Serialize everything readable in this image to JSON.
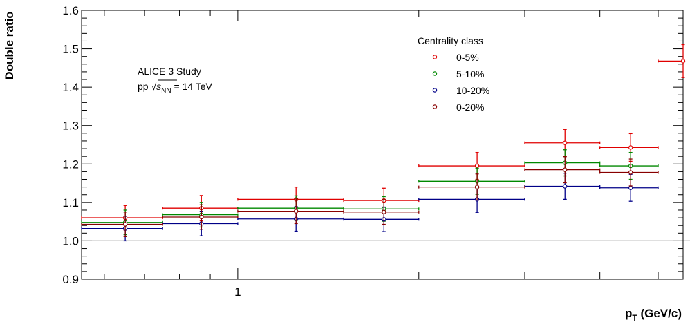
{
  "chart_data": {
    "type": "scatter",
    "ylabel": "Double ratio",
    "xlabel": "p_T (GeV/c)",
    "xlabel_main": "p",
    "xlabel_sub": "T",
    "xlabel_rest": " (GeV/c)",
    "xscale": "log",
    "xlim": [
      0.55,
      5.5
    ],
    "ylim": [
      0.9,
      1.6
    ],
    "yticks": [
      0.9,
      1.0,
      1.1,
      1.2,
      1.3,
      1.4,
      1.5,
      1.6
    ],
    "ytick_labels": [
      "0.9",
      "1.0",
      "1.1",
      "1.2",
      "1.3",
      "1.4",
      "1.5",
      "1.6"
    ],
    "xtick_labels": [
      {
        "value": 1,
        "label": "1"
      }
    ],
    "reference_line": 1.0,
    "grid": false,
    "legend": {
      "title": "Centrality class",
      "placement": "top-right"
    },
    "annotation": {
      "line1": "ALICE 3 Study",
      "line2_prefix": "pp ",
      "line2_s": "s",
      "line2_sub": "NN",
      "line2_rest": " = 14 TeV"
    },
    "series": [
      {
        "name": "0-5%",
        "color": "#e00000",
        "points": [
          {
            "x": 0.65,
            "xlo": 0.55,
            "xhi": 0.75,
            "y": 1.06,
            "ylo": 1.028,
            "yhi": 1.092
          },
          {
            "x": 0.87,
            "xlo": 0.75,
            "xhi": 1.0,
            "y": 1.085,
            "ylo": 1.052,
            "yhi": 1.118
          },
          {
            "x": 1.25,
            "xlo": 1.0,
            "xhi": 1.5,
            "y": 1.108,
            "ylo": 1.076,
            "yhi": 1.14
          },
          {
            "x": 1.75,
            "xlo": 1.5,
            "xhi": 2.0,
            "y": 1.105,
            "ylo": 1.073,
            "yhi": 1.137
          },
          {
            "x": 2.5,
            "xlo": 2.0,
            "xhi": 3.0,
            "y": 1.195,
            "ylo": 1.16,
            "yhi": 1.23
          },
          {
            "x": 3.5,
            "xlo": 3.0,
            "xhi": 4.0,
            "y": 1.255,
            "ylo": 1.22,
            "yhi": 1.29
          },
          {
            "x": 4.5,
            "xlo": 4.0,
            "xhi": 5.0,
            "y": 1.243,
            "ylo": 1.207,
            "yhi": 1.279
          },
          {
            "x": 5.5,
            "xlo": 5.0,
            "xhi": 6.0,
            "y": 1.468,
            "ylo": 1.425,
            "yhi": 1.511
          }
        ]
      },
      {
        "name": "5-10%",
        "color": "#008800",
        "points": [
          {
            "x": 0.65,
            "xlo": 0.55,
            "xhi": 0.75,
            "y": 1.048,
            "ylo": 1.016,
            "yhi": 1.08
          },
          {
            "x": 0.87,
            "xlo": 0.75,
            "xhi": 1.0,
            "y": 1.068,
            "ylo": 1.036,
            "yhi": 1.1
          },
          {
            "x": 1.25,
            "xlo": 1.0,
            "xhi": 1.5,
            "y": 1.085,
            "ylo": 1.053,
            "yhi": 1.117
          },
          {
            "x": 1.75,
            "xlo": 1.5,
            "xhi": 2.0,
            "y": 1.083,
            "ylo": 1.051,
            "yhi": 1.115
          },
          {
            "x": 2.5,
            "xlo": 2.0,
            "xhi": 3.0,
            "y": 1.155,
            "ylo": 1.121,
            "yhi": 1.189
          },
          {
            "x": 3.5,
            "xlo": 3.0,
            "xhi": 4.0,
            "y": 1.203,
            "ylo": 1.169,
            "yhi": 1.237
          },
          {
            "x": 4.5,
            "xlo": 4.0,
            "xhi": 5.0,
            "y": 1.195,
            "ylo": 1.16,
            "yhi": 1.23
          }
        ]
      },
      {
        "name": "10-20%",
        "color": "#000088",
        "points": [
          {
            "x": 0.65,
            "xlo": 0.55,
            "xhi": 0.75,
            "y": 1.032,
            "ylo": 1.0,
            "yhi": 1.064
          },
          {
            "x": 0.87,
            "xlo": 0.75,
            "xhi": 1.0,
            "y": 1.045,
            "ylo": 1.013,
            "yhi": 1.077
          },
          {
            "x": 1.25,
            "xlo": 1.0,
            "xhi": 1.5,
            "y": 1.057,
            "ylo": 1.025,
            "yhi": 1.089
          },
          {
            "x": 1.75,
            "xlo": 1.5,
            "xhi": 2.0,
            "y": 1.056,
            "ylo": 1.024,
            "yhi": 1.088
          },
          {
            "x": 2.5,
            "xlo": 2.0,
            "xhi": 3.0,
            "y": 1.108,
            "ylo": 1.074,
            "yhi": 1.142
          },
          {
            "x": 3.5,
            "xlo": 3.0,
            "xhi": 4.0,
            "y": 1.142,
            "ylo": 1.108,
            "yhi": 1.176
          },
          {
            "x": 4.5,
            "xlo": 4.0,
            "xhi": 5.0,
            "y": 1.138,
            "ylo": 1.103,
            "yhi": 1.173
          }
        ]
      },
      {
        "name": "0-20%",
        "color": "#880000",
        "points": [
          {
            "x": 0.65,
            "xlo": 0.55,
            "xhi": 0.75,
            "y": 1.043,
            "ylo": 1.011,
            "yhi": 1.075
          },
          {
            "x": 0.87,
            "xlo": 0.75,
            "xhi": 1.0,
            "y": 1.062,
            "ylo": 1.03,
            "yhi": 1.094
          },
          {
            "x": 1.25,
            "xlo": 1.0,
            "xhi": 1.5,
            "y": 1.077,
            "ylo": 1.045,
            "yhi": 1.109
          },
          {
            "x": 1.75,
            "xlo": 1.5,
            "xhi": 2.0,
            "y": 1.075,
            "ylo": 1.043,
            "yhi": 1.107
          },
          {
            "x": 2.5,
            "xlo": 2.0,
            "xhi": 3.0,
            "y": 1.14,
            "ylo": 1.106,
            "yhi": 1.174
          },
          {
            "x": 3.5,
            "xlo": 3.0,
            "xhi": 4.0,
            "y": 1.185,
            "ylo": 1.151,
            "yhi": 1.219
          },
          {
            "x": 4.5,
            "xlo": 4.0,
            "xhi": 5.0,
            "y": 1.178,
            "ylo": 1.143,
            "yhi": 1.213
          }
        ]
      }
    ]
  }
}
